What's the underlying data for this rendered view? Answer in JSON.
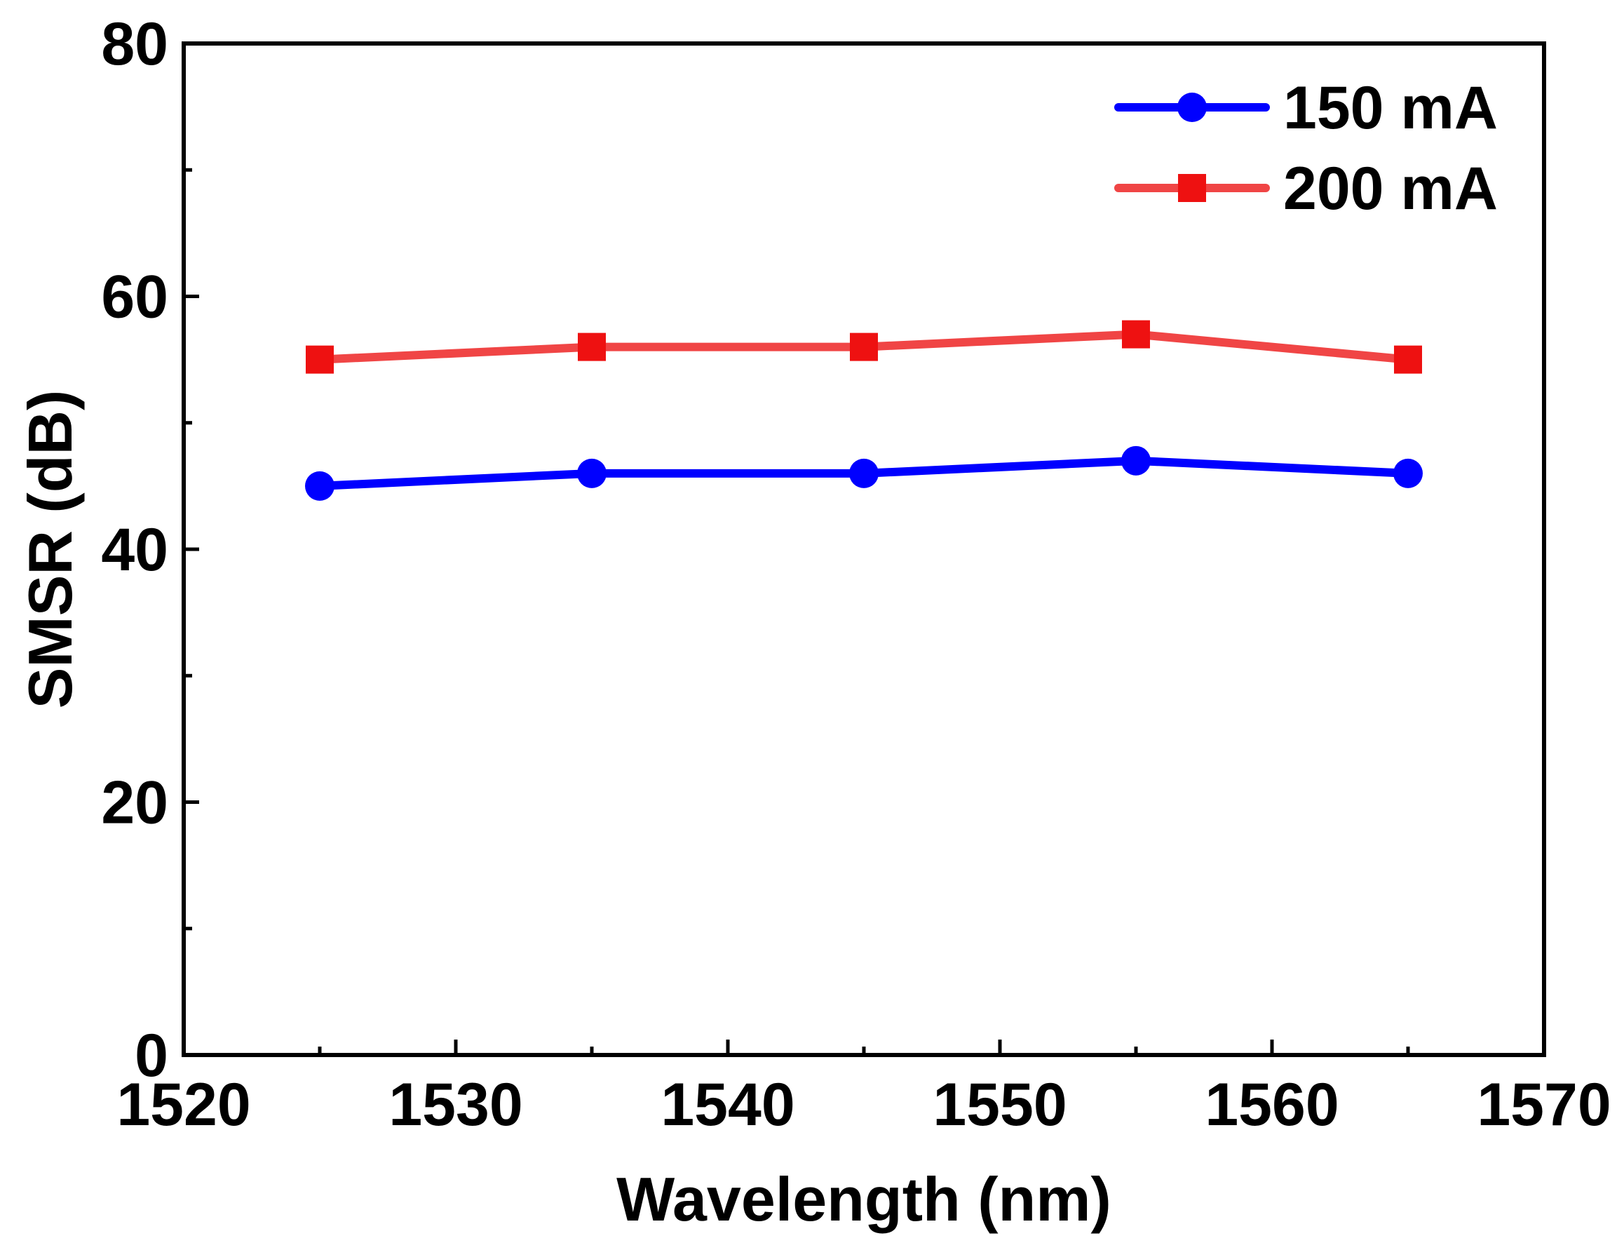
{
  "chart_data": {
    "type": "line",
    "title": "",
    "xlabel": "Wavelength (nm)",
    "ylabel": "SMSR (dB)",
    "xlim": [
      1520,
      1570
    ],
    "ylim": [
      0,
      80
    ],
    "xticks": [
      1520,
      1530,
      1540,
      1550,
      1560,
      1570
    ],
    "yticks": [
      0,
      20,
      40,
      60,
      80
    ],
    "grid": false,
    "legend_position": "top-right",
    "x": [
      1525,
      1535,
      1545,
      1555,
      1565
    ],
    "series": [
      {
        "name": "150 mA",
        "values": [
          45,
          46,
          46,
          47,
          46
        ],
        "color": "#0000ff",
        "marker": "circle"
      },
      {
        "name": "200 mA",
        "values": [
          55,
          56,
          56,
          57,
          55
        ],
        "color": "#f04545",
        "marker": "square"
      }
    ]
  }
}
